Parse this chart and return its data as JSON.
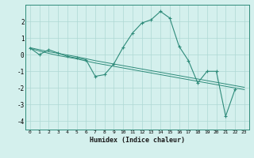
{
  "x": [
    0,
    1,
    2,
    3,
    4,
    5,
    6,
    7,
    8,
    9,
    10,
    11,
    12,
    13,
    14,
    15,
    16,
    17,
    18,
    19,
    20,
    21,
    22,
    23
  ],
  "y_main": [
    0.4,
    0.0,
    0.3,
    0.1,
    -0.1,
    -0.2,
    -0.3,
    -1.3,
    -1.2,
    -0.55,
    0.45,
    1.3,
    1.9,
    2.1,
    2.6,
    2.2,
    0.5,
    -0.35,
    -1.7,
    -1.0,
    -1.0,
    -3.7,
    -2.1,
    null
  ],
  "y_reg1": [
    0.38,
    0.22,
    0.08,
    -0.05,
    -0.15,
    -0.25,
    -0.38,
    -0.5,
    -0.6,
    -0.7,
    -0.8,
    -0.9,
    -1.0,
    -1.1,
    -1.2,
    -1.3,
    -1.4,
    -1.5,
    -1.6,
    -1.7,
    -1.8,
    -1.9,
    -2.0,
    -2.1
  ],
  "y_reg2": [
    0.42,
    0.3,
    0.18,
    0.08,
    -0.02,
    -0.12,
    -0.24,
    -0.36,
    -0.46,
    -0.56,
    -0.66,
    -0.76,
    -0.86,
    -0.96,
    -1.06,
    -1.16,
    -1.26,
    -1.36,
    -1.46,
    -1.56,
    -1.66,
    -1.76,
    -1.86,
    -1.96
  ],
  "line_color": "#2e8b7a",
  "bg_color": "#d4f0ed",
  "grid_color": "#aed8d4",
  "xlabel": "Humidex (Indice chaleur)",
  "ylim": [
    -4.5,
    3.0
  ],
  "xlim": [
    -0.5,
    23.5
  ],
  "yticks": [
    2,
    1,
    0,
    -1,
    -2,
    -3,
    -4
  ],
  "xticks": [
    0,
    1,
    2,
    3,
    4,
    5,
    6,
    7,
    8,
    9,
    10,
    11,
    12,
    13,
    14,
    15,
    16,
    17,
    18,
    19,
    20,
    21,
    22,
    23
  ]
}
